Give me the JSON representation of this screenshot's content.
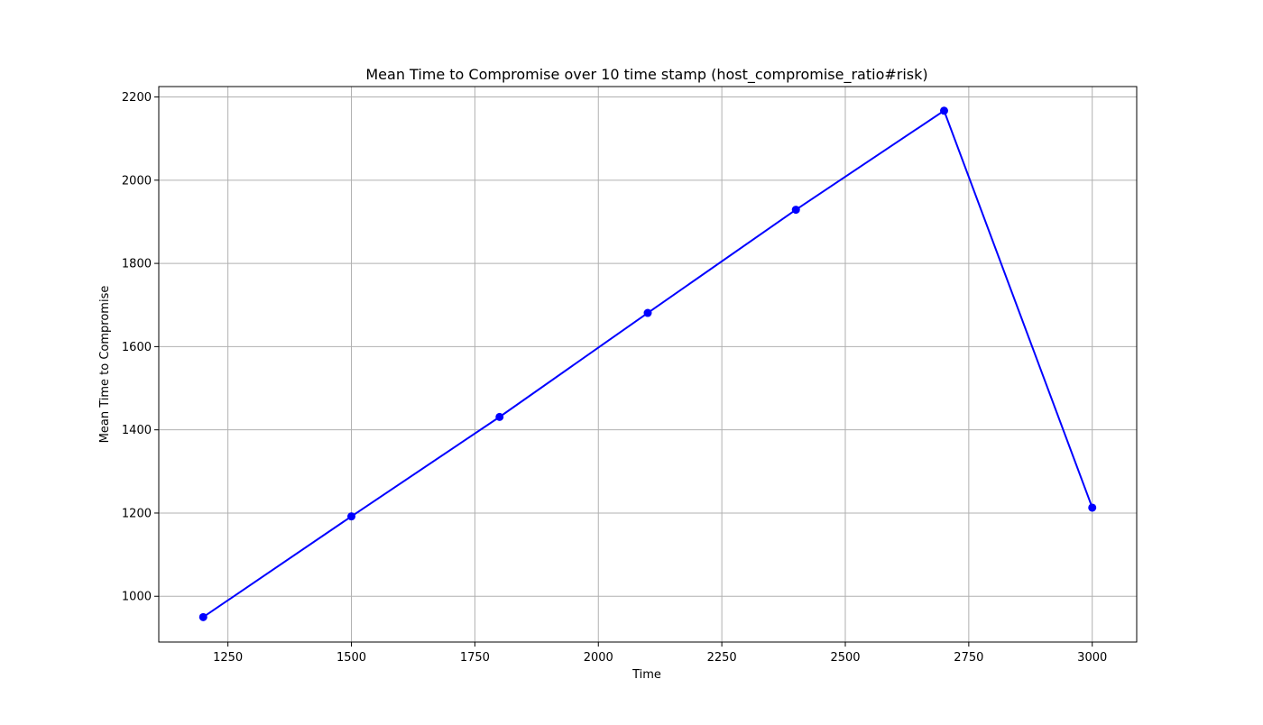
{
  "chart_data": {
    "type": "line",
    "title": "Mean Time to Compromise over 10 time stamp (host_compromise_ratio#risk)",
    "xlabel": "Time",
    "ylabel": "Mean Time to Compromise",
    "xlim": [
      1110,
      3090
    ],
    "ylim": [
      890,
      2225
    ],
    "x_ticks": [
      1250,
      1500,
      1750,
      2000,
      2250,
      2500,
      2750,
      3000
    ],
    "y_ticks": [
      1000,
      1200,
      1400,
      1600,
      1800,
      2000,
      2200
    ],
    "grid": true,
    "series": [
      {
        "x": [
          1200,
          1500,
          1800,
          2100,
          2400,
          2700,
          3000
        ],
        "values": [
          950,
          1192,
          1431,
          1681,
          1929,
          2167,
          1213
        ],
        "color": "#0000ff",
        "marker": "circle"
      }
    ]
  }
}
